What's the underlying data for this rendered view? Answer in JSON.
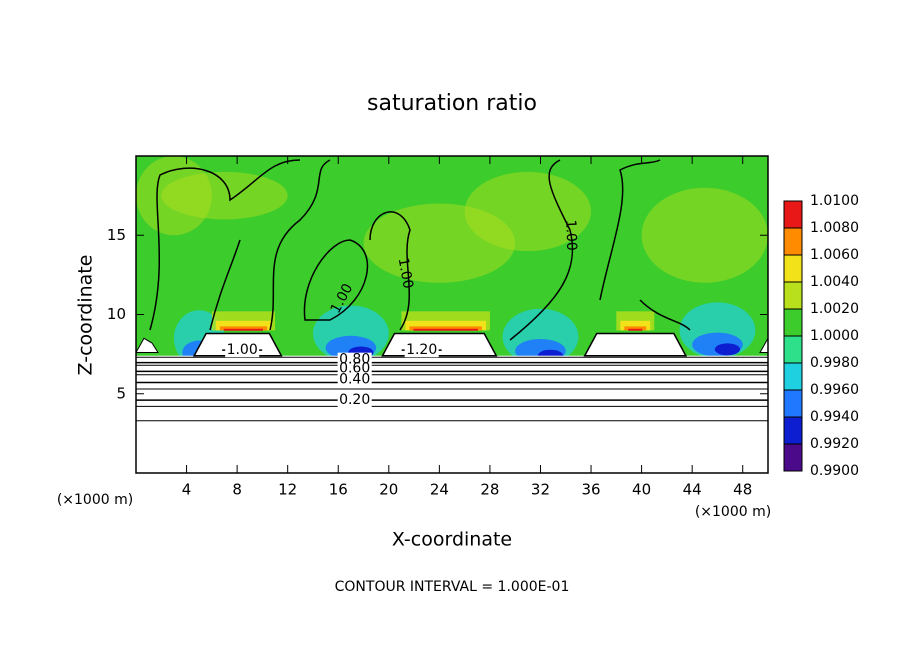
{
  "chart_data": {
    "type": "contour",
    "title": "saturation ratio",
    "x_label": "X-coordinate",
    "y_label": "Z-coordinate",
    "unit_label": "(×1000 m)",
    "footnote": "CONTOUR INTERVAL = 1.000E-01",
    "xlim": [
      0,
      50
    ],
    "xticks": [
      4,
      8,
      12,
      16,
      20,
      24,
      28,
      32,
      36,
      40,
      44,
      48
    ],
    "ylim": [
      0,
      20
    ],
    "yticks": [
      5,
      10,
      15
    ],
    "colorbar": {
      "ticks": [
        {
          "value": 0.99,
          "label": "0.9900"
        },
        {
          "value": 0.992,
          "label": "0.9920"
        },
        {
          "value": 0.994,
          "label": "0.9940"
        },
        {
          "value": 0.996,
          "label": "0.9960"
        },
        {
          "value": 0.998,
          "label": "0.9980"
        },
        {
          "value": 1.0,
          "label": "1.0000"
        },
        {
          "value": 1.002,
          "label": "1.0020"
        },
        {
          "value": 1.004,
          "label": "1.0040"
        },
        {
          "value": 1.006,
          "label": "1.0060"
        },
        {
          "value": 1.008,
          "label": "1.0080"
        },
        {
          "value": 1.01,
          "label": "1.0100"
        }
      ],
      "colors": [
        "#4b0a8a",
        "#0c1ed0",
        "#1f78ff",
        "#1fd0e0",
        "#2ee08a",
        "#3ccc2c",
        "#b8e01c",
        "#f2e21a",
        "#ff8c00",
        "#e81818"
      ]
    },
    "contour_labels": [
      {
        "value": 1.0,
        "label": "1.00"
      },
      {
        "value": 1.2,
        "label": "1.20"
      },
      {
        "value": 0.8,
        "label": "0.80"
      },
      {
        "value": 0.6,
        "label": "0.60"
      },
      {
        "value": 0.4,
        "label": "0.40"
      },
      {
        "value": 0.2,
        "label": "0.20"
      },
      {
        "value": 1.0,
        "label": "1.00"
      },
      {
        "value": 1.0,
        "label": "1.00"
      },
      {
        "value": 1.0,
        "label": "1.00"
      }
    ]
  }
}
